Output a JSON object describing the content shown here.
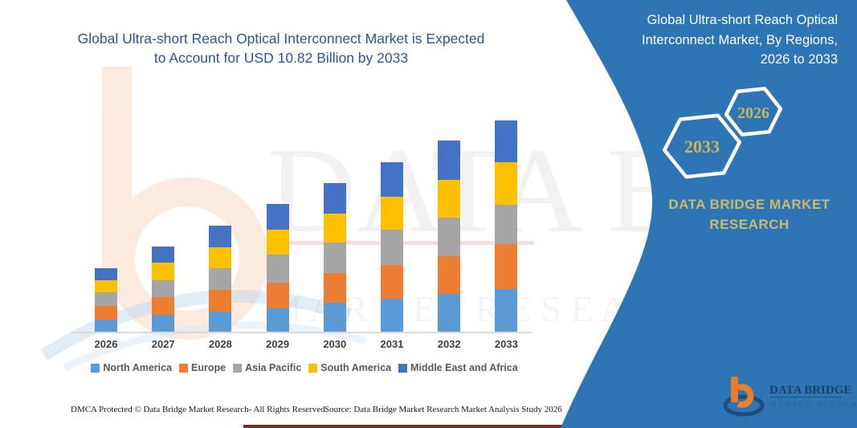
{
  "header": {
    "main_title_line1": "Global Ultra-short Reach Optical Interconnect Market is Expected",
    "main_title_line2": "to Account for USD 10.82 Billion by 2033"
  },
  "panel": {
    "title": "Global Ultra-short Reach Optical Interconnect Market, By Regions, 2026 to 2033",
    "hexagon_year_left": "2033",
    "hexagon_year_right": "2026",
    "brand_line1": "DATA BRIDGE MARKET",
    "brand_line2": "RESEARCH",
    "panel_color": "#2e75b6",
    "gold_color": "#cdb96a"
  },
  "logo": {
    "name": "DATA BRIDGE",
    "sub": "MARKET RESEARCH",
    "orange": "#e87d2b",
    "navy": "#1f4e79"
  },
  "watermark": {
    "text_top": "DATA BRIDGE",
    "text_bottom": "M A R K E T   R E S E A R C H"
  },
  "footer": {
    "dmca": "DMCA Protected © Data Bridge Market Research-  All Rights Reserved.",
    "source": "Source: Data Bridge Market Research  Market Analysis Study 2026"
  },
  "chart_data": {
    "type": "bar",
    "stacked": true,
    "title": "Global Ultra-short Reach Optical Interconnect Market, By Regions, 2026 to 2033",
    "unit": "USD Billion",
    "categories": [
      "2026",
      "2027",
      "2028",
      "2029",
      "2030",
      "2031",
      "2032",
      "2033"
    ],
    "series": [
      {
        "name": "North America",
        "color": "#5b9bd5",
        "values": [
          0.63,
          0.85,
          1.04,
          1.21,
          1.48,
          1.69,
          1.92,
          2.19
        ]
      },
      {
        "name": "Europe",
        "color": "#ed7d31",
        "values": [
          0.68,
          0.9,
          1.1,
          1.29,
          1.53,
          1.74,
          1.96,
          2.31
        ]
      },
      {
        "name": "Asia Pacific",
        "color": "#a5a5a5",
        "values": [
          0.69,
          0.86,
          1.1,
          1.43,
          1.54,
          1.81,
          1.95,
          2.0
        ]
      },
      {
        "name": "South America",
        "color": "#ffc000",
        "values": [
          0.64,
          0.91,
          1.09,
          1.27,
          1.51,
          1.65,
          1.94,
          2.17
        ]
      },
      {
        "name": "Middle East and Africa",
        "color": "#4472c4",
        "values": [
          0.59,
          0.83,
          1.09,
          1.35,
          1.55,
          1.77,
          2.0,
          2.15
        ]
      }
    ],
    "totals": [
      3.23,
      4.35,
      5.42,
      6.55,
      7.61,
      8.66,
      9.77,
      10.82
    ],
    "highlight_total": "USD 10.82 Billion by 2033",
    "ylim": [
      0,
      11
    ],
    "grid": false,
    "legend_position": "bottom",
    "y_axis_visible": false
  }
}
